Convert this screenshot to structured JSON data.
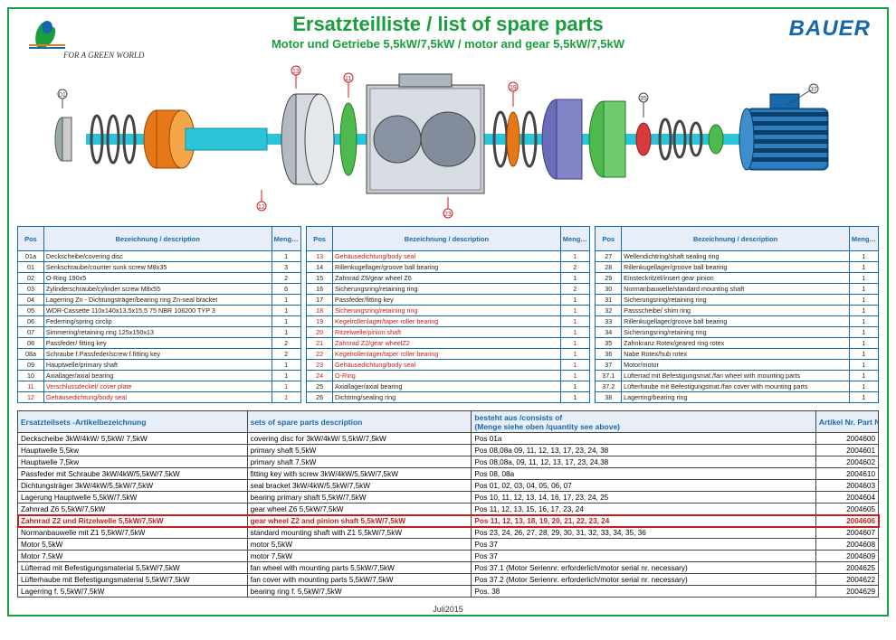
{
  "title": "Ersatzteilliste / list of spare parts",
  "subtitle": "Motor und Getriebe 5,5kW/7,5kW  / motor and gear 5,5kW/7,5kW",
  "brand": "BAUER",
  "slogan": "FOR A GREEN WORLD",
  "footer": "Juli2015",
  "parts": {
    "headers": {
      "pos": "Pos",
      "desc": "Bezeichnung / description",
      "qty": "Menge Quantity"
    },
    "cols": [
      [
        {
          "p": "01a",
          "d": "Deckscheibe/covering disc",
          "q": "1"
        },
        {
          "p": "01",
          "d": "Senkschraube/counter sunk screw M8x35",
          "q": "3"
        },
        {
          "p": "02",
          "d": "O-Ring 190x5",
          "q": "2"
        },
        {
          "p": "03",
          "d": "Zylinderschraube/cylinder screw M8x55",
          "q": "6"
        },
        {
          "p": "04",
          "d": "Lagerring Zn - Dichtungsträger/bearing ring Zn-seal bracket",
          "q": "1"
        },
        {
          "p": "05",
          "d": "WDR-Cassette 110x140x13,5x15,5 75 NBR 106200 TYP 3",
          "q": "1"
        },
        {
          "p": "06",
          "d": "Federring/spring circlip",
          "q": "1"
        },
        {
          "p": "07",
          "d": "Simmering/retaining ring 125x150x13",
          "q": "1"
        },
        {
          "p": "08",
          "d": "Passfeder/ fitting key",
          "q": "2"
        },
        {
          "p": "08a",
          "d": "Schraube f.Passfeder/screw f.fitting key",
          "q": "2"
        },
        {
          "p": "09",
          "d": "Hauptwelle/primary shaft",
          "q": "1"
        },
        {
          "p": "10",
          "d": "Axiallager/axial bearing",
          "q": "1"
        },
        {
          "p": "11",
          "d": "Verschlussdeckel/ cover plate",
          "q": "1",
          "red": true
        },
        {
          "p": "12",
          "d": "Gehäusedichtung/body seal",
          "q": "1",
          "red": true
        }
      ],
      [
        {
          "p": "13",
          "d": "Gehäusedichtung/body seal",
          "q": "1",
          "red": true
        },
        {
          "p": "14",
          "d": "Rillenkugellager/groove ball bearing",
          "q": "2"
        },
        {
          "p": "15",
          "d": "Zahnrad Z6/gear wheel Z6",
          "q": "1"
        },
        {
          "p": "16",
          "d": "Sicherungsring/retaining ring",
          "q": "2"
        },
        {
          "p": "17",
          "d": "Passfeder/fitting key",
          "q": "1"
        },
        {
          "p": "18",
          "d": "Sicherungsring/retaining ring",
          "q": "1",
          "red": true
        },
        {
          "p": "19",
          "d": "Kegelrollenlager/taper roller bearing",
          "q": "1",
          "red": true
        },
        {
          "p": "20",
          "d": "Ritzelwelle/pinion shaft",
          "q": "1",
          "red": true
        },
        {
          "p": "21",
          "d": "Zahnrad Z2/gear wheelZ2",
          "q": "1",
          "red": true
        },
        {
          "p": "22",
          "d": "Kegelrollenlager/taper roller bearing",
          "q": "1",
          "red": true
        },
        {
          "p": "23",
          "d": "Gehäusedichtung/body seal",
          "q": "1",
          "red": true
        },
        {
          "p": "24",
          "d": "O-Ring",
          "q": "1",
          "red": true
        },
        {
          "p": "25",
          "d": "Axiallager/axial bearing",
          "q": "1"
        },
        {
          "p": "26",
          "d": "Dichtring/sealing ring",
          "q": "1"
        }
      ],
      [
        {
          "p": "27",
          "d": "Wellendichtring/shaft sealing ring",
          "q": "1"
        },
        {
          "p": "28",
          "d": "Rillenkugellager/groove ball bearing",
          "q": "1"
        },
        {
          "p": "29",
          "d": "Einsteckritzel/insert gear pinion",
          "q": "1"
        },
        {
          "p": "30",
          "d": "Normanbauwelle/standard mounting shaft",
          "q": "1"
        },
        {
          "p": "31",
          "d": "Sicherungsring/retaining ring",
          "q": "1"
        },
        {
          "p": "32",
          "d": "Passscheibe/ shim ring",
          "q": "1"
        },
        {
          "p": "33",
          "d": "Rillenkugellager/groove ball bearing",
          "q": "1"
        },
        {
          "p": "34",
          "d": "Sicherungsring/retaining ring",
          "q": "1"
        },
        {
          "p": "35",
          "d": "Zahnkranz Rotex/geared ring rotex",
          "q": "1"
        },
        {
          "p": "36",
          "d": "Nabe Rotex/hub rotex",
          "q": "1"
        },
        {
          "p": "37",
          "d": "Motor/motor",
          "q": "1"
        },
        {
          "p": "37.1",
          "d": "Lüfterrad mit Befestigungsmat./fan wheel with mounting parts",
          "q": "1"
        },
        {
          "p": "37.2",
          "d": "Lüfterhaube mit Befestigungsmat./fan cover with mounting parts",
          "q": "1"
        },
        {
          "p": "38",
          "d": "Lagerring/bearing ring",
          "q": "1"
        }
      ]
    ]
  },
  "sets": {
    "headers": {
      "c1": "Ersatzteilsets -Artikelbezeichnung",
      "c2": "sets of spare parts  description",
      "c3": "besteht aus  /consists of\\n(Menge siehe oben /quantity see above)",
      "c4": "Artikel Nr. Part No."
    },
    "rows": [
      {
        "c1": "Deckscheibe 3kW/4kW/ 5,5kW/ 7,5kW",
        "c2": "covering disc for 3kW/4kW/ 5,5kW/7,5kW",
        "c3": "Pos 01a",
        "c4": "2004600"
      },
      {
        "c1": "Hauptwelle 5,5kw",
        "c2": "primary shaft 5,5kW",
        "c3": "Pos 08,08a 09, 11, 12, 13, 17, 23, 24, 38",
        "c4": "2004601"
      },
      {
        "c1": "Hauptwelle 7,5kw",
        "c2": "primary shaft 7,5kW",
        "c3": "Pos 08,08a, 09, 11, 12, 13, 17, 23, 24,38",
        "c4": "2004602"
      },
      {
        "c1": "Passfeder mit Schraube 3kW/4kW/5,5kW/7,5kW",
        "c2": "fitting key with screw  3kW/4kW/5,5kW/7,5kW",
        "c3": "Pos 08, 08a",
        "c4": "2004610"
      },
      {
        "c1": "Dichtungsträger 3kW/4kW/5,5kW/7,5kW",
        "c2": "seal bracket 3kW/4kW/5,5kW/7,5kW",
        "c3": "Pos 01, 02, 03, 04, 05, 06, 07",
        "c4": "2004603"
      },
      {
        "c1": "Lagerung Hauptwelle 5,5kW/7,5kW",
        "c2": "bearing primary shaft 5,5kW/7,5kW",
        "c3": "Pos 10, 11, 12, 13, 14, 16, 17, 23, 24, 25",
        "c4": "2004604"
      },
      {
        "c1": "Zahnrad Z6 5,5kW/7,5kW",
        "c2": "gear wheel Z6 5,5kW/7,5kW",
        "c3": "Pos 11, 12, 13, 15, 16, 17, 23, 24",
        "c4": "2004605"
      },
      {
        "c1": "Zahnrad Z2 und Ritzelwelle 5,5kW/7,5kW",
        "c2": "gear wheel Z2 and pinion shaft 5,5kW/7,5kW",
        "c3": "Pos 11, 12, 13, 18, 19, 20, 21, 22, 23, 24",
        "c4": "2004606",
        "hl": true
      },
      {
        "c1": "Normanbauwelle mit Z1 5,5kW/7,5kW",
        "c2": "standard mounting shaft with Z1 5,5kW/7,5kW",
        "c3": "Pos 23, 24, 26, 27, 28, 29, 30, 31, 32, 33, 34, 35, 36",
        "c4": "2004607"
      },
      {
        "c1": "Motor 5,5kW",
        "c2": "motor 5,5kW",
        "c3": "Pos 37",
        "c4": "2004608"
      },
      {
        "c1": "Motor 7,5kW",
        "c2": "motor 7,5kW",
        "c3": "Pos 37",
        "c4": "2004609"
      },
      {
        "c1": "Lüfterrad mit Befestigungsmaterial 5,5kW/7,5kW",
        "c2": "fan wheel with mounting parts 5,5kW/7,5kW",
        "c3": "Pos 37.1 (Motor Seriennr. erforderlich/motor serial nr. necessary)",
        "c4": "2004625"
      },
      {
        "c1": "Lüfterhaube mit Befestigungsmaterial 5,5kW/7,5kW",
        "c2": "fan cover with mounting parts 5,5kW/7,5kW",
        "c3": "Pos 37.2 (Motor Seriennr. erforderlich/motor serial nr. necessary)",
        "c4": "2004622"
      },
      {
        "c1": "Lagerring f. 5,5kW/7,5kW",
        "c2": "bearing ring f. 5,5kW/7,5kW",
        "c3": "Pos. 38",
        "c4": "2004629"
      }
    ]
  }
}
